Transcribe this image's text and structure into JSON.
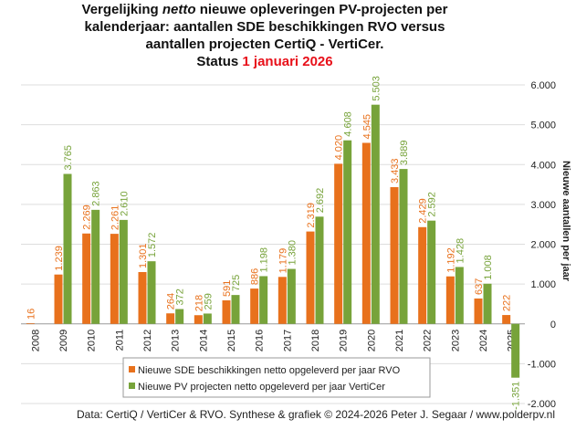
{
  "chart_data": {
    "type": "bar",
    "title_lines": [
      [
        {
          "text": "Vergelijking "
        },
        {
          "text": "netto",
          "italic": true
        },
        {
          "text": " nieuwe opleveringen PV-projecten per"
        }
      ],
      [
        {
          "text": "kalenderjaar: aantallen SDE beschikkingen RVO versus"
        }
      ],
      [
        {
          "text": "aantallen projecten CertiQ - VertiCer."
        }
      ],
      [
        {
          "text": "Status "
        },
        {
          "text": "1 januari 2026",
          "color": "#e8101a"
        }
      ]
    ],
    "y_label": "Nieuwe aantallen per jaar",
    "footer": "Data: CertiQ / VertiCer & RVO. Synthese & grafiek © 2024-2026 Peter J. Segaar / www.polderpv.nl",
    "categories": [
      "2008",
      "2009",
      "2010",
      "2011",
      "2012",
      "2013",
      "2014",
      "2015",
      "2016",
      "2017",
      "2018",
      "2019",
      "2020",
      "2021",
      "2022",
      "2023",
      "2024",
      "2025"
    ],
    "series": [
      {
        "name": "Nieuwe SDE beschikkingen netto opgeleverd per jaar RVO",
        "color": "#e8711c",
        "values": [
          16,
          1239,
          2269,
          2261,
          1301,
          264,
          218,
          591,
          886,
          1179,
          2319,
          4020,
          4545,
          3433,
          2429,
          1192,
          637,
          222
        ],
        "value_labels": [
          "16",
          "1.239",
          "2.269",
          "2.261",
          "1.301",
          "264",
          "218",
          "591",
          "886",
          "1.179",
          "2.319",
          "4.020",
          "4.545",
          "3.433",
          "2.429",
          "1.192",
          "637",
          "222"
        ]
      },
      {
        "name": "Nieuwe PV projecten netto opgeleverd per jaar VertiCer",
        "color": "#77a33a",
        "values": [
          null,
          3765,
          2863,
          2610,
          1572,
          372,
          259,
          725,
          1198,
          1380,
          2692,
          4608,
          5503,
          3889,
          2592,
          1428,
          1008,
          -1351
        ],
        "value_labels": [
          null,
          "3.765",
          "2.863",
          "2.610",
          "1.572",
          "372",
          "259",
          "725",
          "1.198",
          "1.380",
          "2.692",
          "4.608",
          "5.503",
          "3.889",
          "2.592",
          "1.428",
          "1.008",
          "-1.351"
        ]
      }
    ],
    "ylim": [
      -2000,
      6000
    ],
    "yticks": [
      {
        "value": -2000,
        "label": "-2.000"
      },
      {
        "value": -1000,
        "label": "-1.000"
      },
      0,
      {
        "value": 1000,
        "label": "1.000"
      },
      {
        "value": 2000,
        "label": "2.000"
      },
      {
        "value": 3000,
        "label": "3.000"
      },
      {
        "value": 4000,
        "label": "4.000"
      },
      {
        "value": 5000,
        "label": "5.000"
      },
      {
        "value": 6000,
        "label": "6.000"
      }
    ],
    "grid": true
  }
}
